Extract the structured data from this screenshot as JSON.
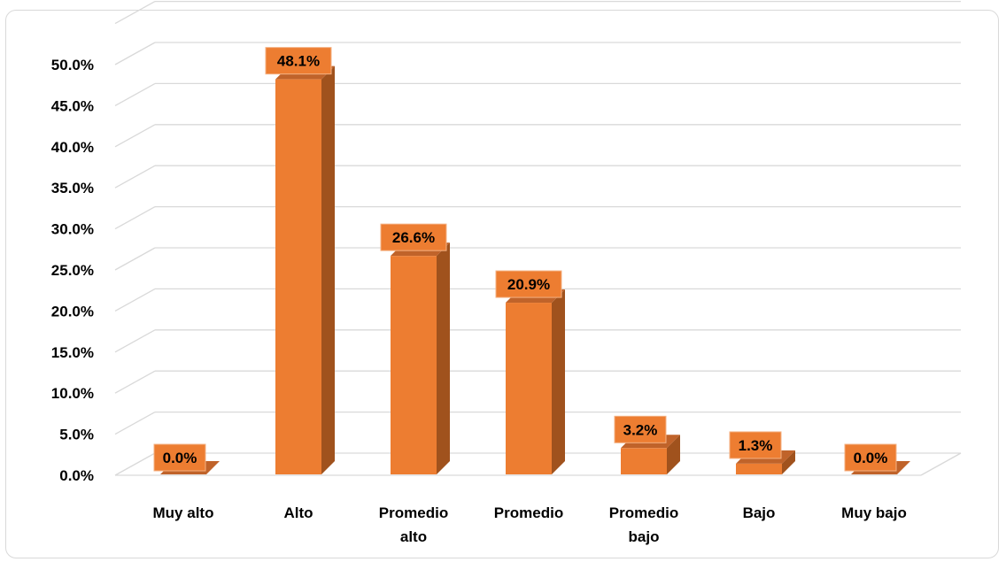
{
  "chart_data": {
    "type": "bar",
    "categories": [
      "Muy alto",
      "Alto",
      "Promedio alto",
      "Promedio",
      "Promedio bajo",
      "Bajo",
      "Muy bajo"
    ],
    "values": [
      0.0,
      48.1,
      26.6,
      20.9,
      3.2,
      1.3,
      0.0
    ],
    "value_labels": [
      "0.0%",
      "48.1%",
      "26.6%",
      "20.9%",
      "3.2%",
      "1.3%",
      "0.0%"
    ],
    "y_ticks": [
      0,
      5,
      10,
      15,
      20,
      25,
      30,
      35,
      40,
      45,
      50
    ],
    "y_tick_labels": [
      "0.0%",
      "5.0%",
      "10.0%",
      "15.0%",
      "20.0%",
      "25.0%",
      "30.0%",
      "35.0%",
      "40.0%",
      "45.0%",
      "50.0%"
    ],
    "ylim": [
      0,
      50
    ],
    "title": "",
    "xlabel": "",
    "ylabel": "",
    "grid": true,
    "legend": "none",
    "style": "3d-column",
    "colors": {
      "bar_front": "#ed7d31",
      "bar_side": "#a0521d",
      "bar_top": "#c0632a",
      "label_box": "#ed7d31",
      "label_box_border": "#f4b183",
      "grid": "#d9d9d9"
    }
  }
}
